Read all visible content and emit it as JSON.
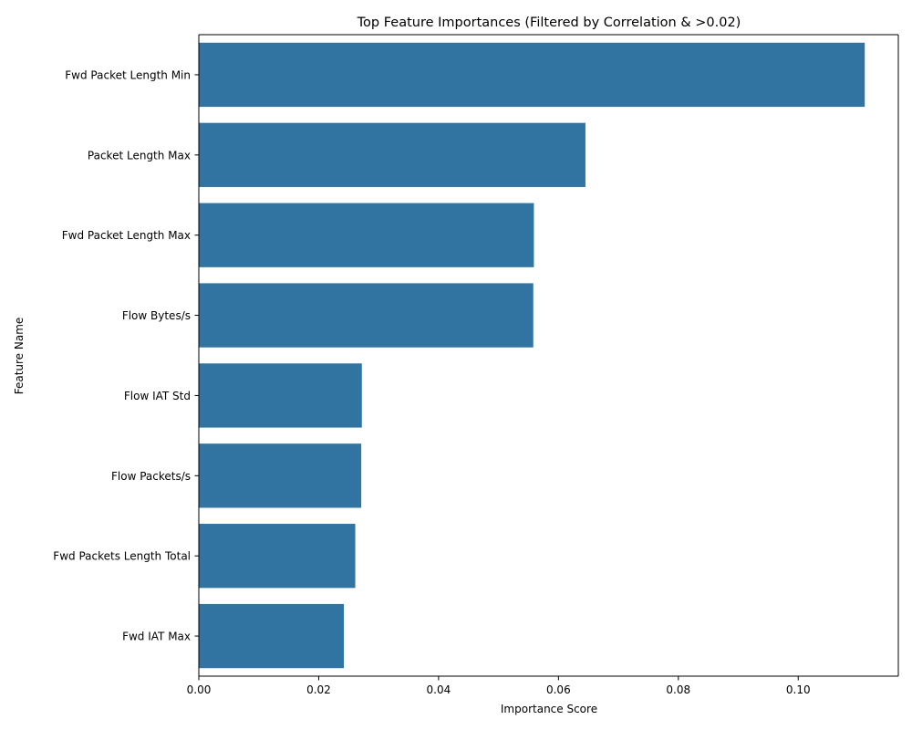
{
  "chart_data": {
    "type": "bar",
    "orientation": "horizontal",
    "title": "Top Feature Importances (Filtered by Correlation & >0.02)",
    "xlabel": "Importance Score",
    "ylabel": "Feature Name",
    "categories": [
      "Fwd Packet Length Min",
      "Packet Length Max",
      "Fwd Packet Length Max",
      "Flow Bytes/s",
      "Flow IAT Std",
      "Flow Packets/s",
      "Fwd Packets Length Total",
      "Fwd IAT Max"
    ],
    "values": [
      0.1111,
      0.0645,
      0.0559,
      0.0558,
      0.0272,
      0.0271,
      0.0261,
      0.0242
    ],
    "xlim": [
      0,
      0.1167
    ],
    "xticks": [
      0,
      0.02,
      0.04,
      0.06,
      0.08,
      0.1
    ],
    "xtick_labels": [
      "0.00",
      "0.02",
      "0.04",
      "0.06",
      "0.08",
      "0.10"
    ],
    "bar_color": "#3274a1",
    "grid": false,
    "legend": "none"
  }
}
